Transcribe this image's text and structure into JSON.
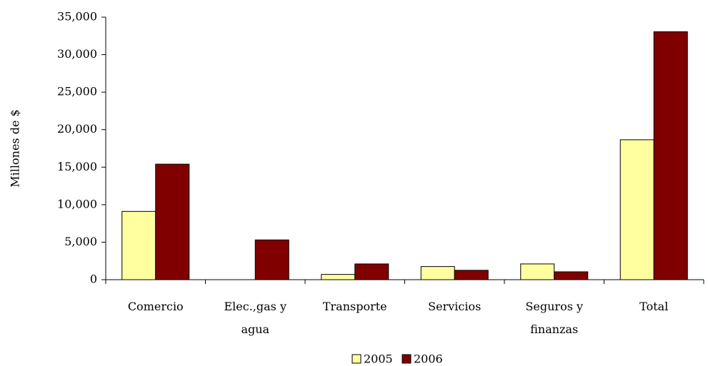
{
  "chart_data": {
    "type": "bar",
    "y_label": "Millones de $",
    "categories": [
      "Comercio",
      "Elec.,gas y agua",
      "Transporte",
      "Servicios",
      "Seguros y finanzas",
      "Total"
    ],
    "series": [
      {
        "name": "2005",
        "color": "#ffffa0",
        "values": [
          9100,
          0,
          700,
          1750,
          2100,
          18650
        ]
      },
      {
        "name": "2006",
        "color": "#800000",
        "values": [
          15400,
          5300,
          2100,
          1250,
          1050,
          33050
        ]
      }
    ],
    "ylim": [
      0,
      35000
    ],
    "yticks": [
      0,
      {
        "value": 5000,
        "label": "5,000"
      },
      {
        "value": 10000,
        "label": "10,000"
      },
      {
        "value": 15000,
        "label": "15,000"
      },
      {
        "value": 20000,
        "label": "20,000"
      },
      {
        "value": 25000,
        "label": "25,000"
      },
      {
        "value": 30000,
        "label": "30,000"
      },
      {
        "value": 35000,
        "label": "35,000"
      }
    ],
    "legend": "bottom"
  }
}
